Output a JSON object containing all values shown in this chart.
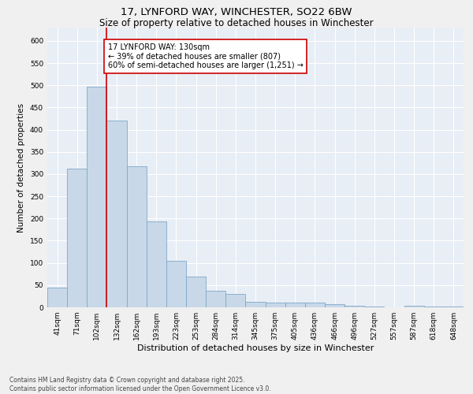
{
  "title_line1": "17, LYNFORD WAY, WINCHESTER, SO22 6BW",
  "title_line2": "Size of property relative to detached houses in Winchester",
  "xlabel": "Distribution of detached houses by size in Winchester",
  "ylabel": "Number of detached properties",
  "categories": [
    "41sqm",
    "71sqm",
    "102sqm",
    "132sqm",
    "162sqm",
    "193sqm",
    "223sqm",
    "253sqm",
    "284sqm",
    "314sqm",
    "345sqm",
    "375sqm",
    "405sqm",
    "436sqm",
    "466sqm",
    "496sqm",
    "527sqm",
    "557sqm",
    "587sqm",
    "618sqm",
    "648sqm"
  ],
  "values": [
    45,
    312,
    497,
    420,
    318,
    193,
    105,
    70,
    37,
    30,
    12,
    10,
    11,
    10,
    7,
    4,
    1,
    0,
    3,
    1,
    2
  ],
  "bar_color": "#c8d8e8",
  "bar_edge_color": "#7fa8c8",
  "bar_linewidth": 0.6,
  "vline_color": "#cc0000",
  "vline_linewidth": 1.2,
  "annotation_text": "17 LYNFORD WAY: 130sqm\n← 39% of detached houses are smaller (807)\n60% of semi-detached houses are larger (1,251) →",
  "annotation_box_color": "#ffffff",
  "annotation_box_edge_color": "#cc0000",
  "annotation_fontsize": 7.0,
  "ylim": [
    0,
    630
  ],
  "yticks": [
    0,
    50,
    100,
    150,
    200,
    250,
    300,
    350,
    400,
    450,
    500,
    550,
    600
  ],
  "background_color": "#e8eef5",
  "grid_color": "#ffffff",
  "footer_text": "Contains HM Land Registry data © Crown copyright and database right 2025.\nContains public sector information licensed under the Open Government Licence v3.0.",
  "title_fontsize": 9.5,
  "subtitle_fontsize": 8.5,
  "xlabel_fontsize": 8.0,
  "ylabel_fontsize": 7.5,
  "tick_fontsize": 6.5,
  "footer_fontsize": 5.5
}
